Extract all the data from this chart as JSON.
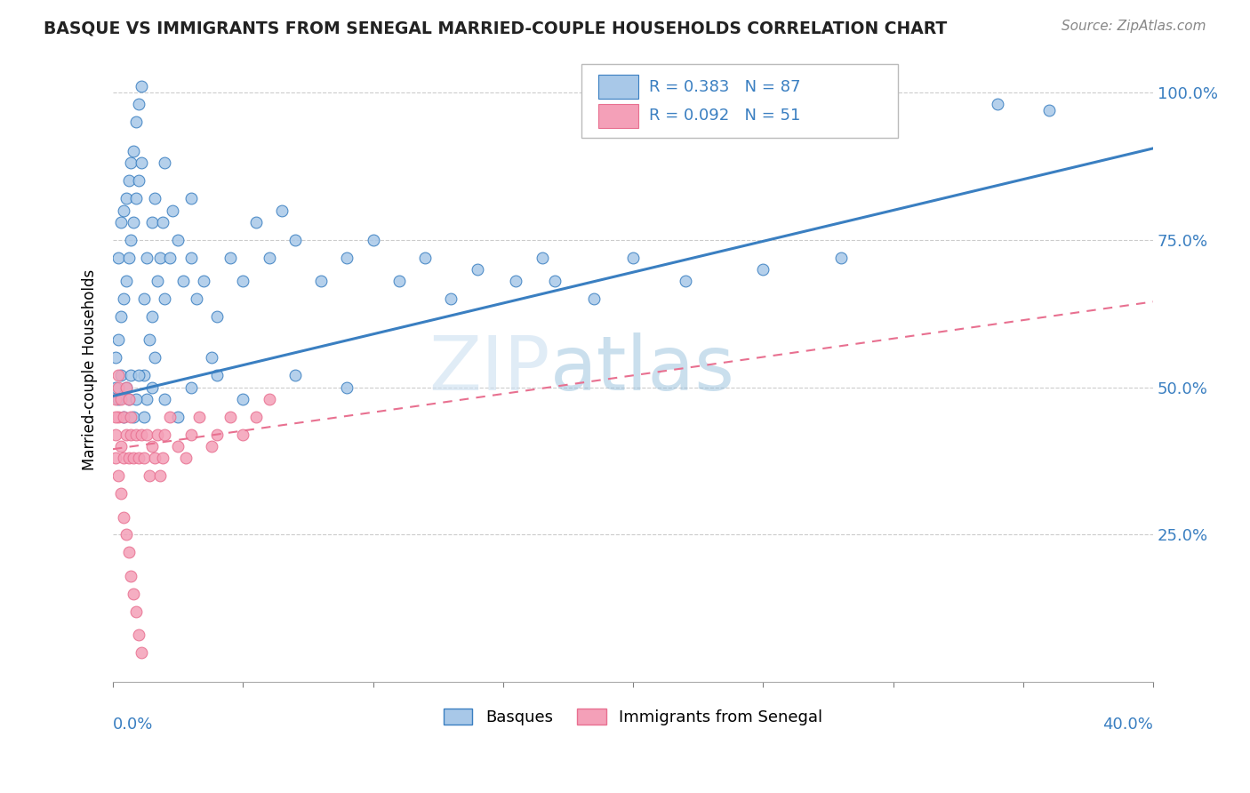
{
  "title": "BASQUE VS IMMIGRANTS FROM SENEGAL MARRIED-COUPLE HOUSEHOLDS CORRELATION CHART",
  "source": "Source: ZipAtlas.com",
  "ylabel": "Married-couple Households",
  "ytick_values": [
    0.25,
    0.5,
    0.75,
    1.0
  ],
  "xlim": [
    0.0,
    0.4
  ],
  "ylim": [
    0.0,
    1.06
  ],
  "R_basque": 0.383,
  "N_basque": 87,
  "R_senegal": 0.092,
  "N_senegal": 51,
  "legend_label_basque": "Basques",
  "legend_label_senegal": "Immigrants from Senegal",
  "color_basque": "#a8c8e8",
  "color_senegal": "#f4a0b8",
  "trend_color_basque": "#3a7fc1",
  "trend_color_senegal": "#e87090",
  "watermark_zip": "ZIP",
  "watermark_atlas": "atlas",
  "trend_basque_x0": 0.0,
  "trend_basque_y0": 0.485,
  "trend_basque_x1": 0.4,
  "trend_basque_y1": 0.905,
  "trend_senegal_x0": 0.0,
  "trend_senegal_y0": 0.395,
  "trend_senegal_x1": 0.4,
  "trend_senegal_y1": 0.645,
  "basque_x": [
    0.001,
    0.002,
    0.002,
    0.003,
    0.003,
    0.004,
    0.004,
    0.005,
    0.005,
    0.006,
    0.006,
    0.007,
    0.007,
    0.008,
    0.008,
    0.009,
    0.009,
    0.01,
    0.01,
    0.011,
    0.011,
    0.012,
    0.012,
    0.013,
    0.013,
    0.014,
    0.015,
    0.015,
    0.016,
    0.016,
    0.017,
    0.018,
    0.019,
    0.02,
    0.02,
    0.022,
    0.023,
    0.025,
    0.027,
    0.03,
    0.03,
    0.032,
    0.035,
    0.038,
    0.04,
    0.045,
    0.05,
    0.055,
    0.06,
    0.065,
    0.07,
    0.08,
    0.09,
    0.1,
    0.11,
    0.12,
    0.13,
    0.14,
    0.155,
    0.165,
    0.17,
    0.185,
    0.2,
    0.22,
    0.25,
    0.28,
    0.34,
    0.36,
    0.001,
    0.002,
    0.003,
    0.004,
    0.005,
    0.006,
    0.007,
    0.008,
    0.009,
    0.01,
    0.012,
    0.015,
    0.02,
    0.025,
    0.03,
    0.04,
    0.05,
    0.07,
    0.09
  ],
  "basque_y": [
    0.55,
    0.58,
    0.72,
    0.62,
    0.78,
    0.65,
    0.8,
    0.68,
    0.82,
    0.72,
    0.85,
    0.75,
    0.88,
    0.78,
    0.9,
    0.82,
    0.95,
    0.85,
    0.98,
    0.88,
    1.01,
    0.52,
    0.65,
    0.48,
    0.72,
    0.58,
    0.62,
    0.78,
    0.55,
    0.82,
    0.68,
    0.72,
    0.78,
    0.65,
    0.88,
    0.72,
    0.8,
    0.75,
    0.68,
    0.72,
    0.82,
    0.65,
    0.68,
    0.55,
    0.62,
    0.72,
    0.68,
    0.78,
    0.72,
    0.8,
    0.75,
    0.68,
    0.72,
    0.75,
    0.68,
    0.72,
    0.65,
    0.7,
    0.68,
    0.72,
    0.68,
    0.65,
    0.72,
    0.68,
    0.7,
    0.72,
    0.98,
    0.97,
    0.5,
    0.48,
    0.52,
    0.45,
    0.5,
    0.48,
    0.52,
    0.45,
    0.48,
    0.52,
    0.45,
    0.5,
    0.48,
    0.45,
    0.5,
    0.52,
    0.48,
    0.52,
    0.5
  ],
  "senegal_x": [
    0.001,
    0.001,
    0.002,
    0.002,
    0.003,
    0.003,
    0.004,
    0.004,
    0.005,
    0.005,
    0.006,
    0.006,
    0.007,
    0.007,
    0.008,
    0.008,
    0.009,
    0.009,
    0.01,
    0.01,
    0.011,
    0.011,
    0.012,
    0.013,
    0.014,
    0.015,
    0.016,
    0.017,
    0.018,
    0.019,
    0.02,
    0.022,
    0.025,
    0.028,
    0.03,
    0.033,
    0.038,
    0.04,
    0.045,
    0.05,
    0.055,
    0.06,
    0.001,
    0.001,
    0.002,
    0.002,
    0.003,
    0.004,
    0.005,
    0.006,
    0.007
  ],
  "senegal_y": [
    0.42,
    0.38,
    0.45,
    0.35,
    0.4,
    0.32,
    0.38,
    0.28,
    0.42,
    0.25,
    0.38,
    0.22,
    0.42,
    0.18,
    0.38,
    0.15,
    0.42,
    0.12,
    0.38,
    0.08,
    0.42,
    0.05,
    0.38,
    0.42,
    0.35,
    0.4,
    0.38,
    0.42,
    0.35,
    0.38,
    0.42,
    0.45,
    0.4,
    0.38,
    0.42,
    0.45,
    0.4,
    0.42,
    0.45,
    0.42,
    0.45,
    0.48,
    0.45,
    0.48,
    0.5,
    0.52,
    0.48,
    0.45,
    0.5,
    0.48,
    0.45
  ]
}
